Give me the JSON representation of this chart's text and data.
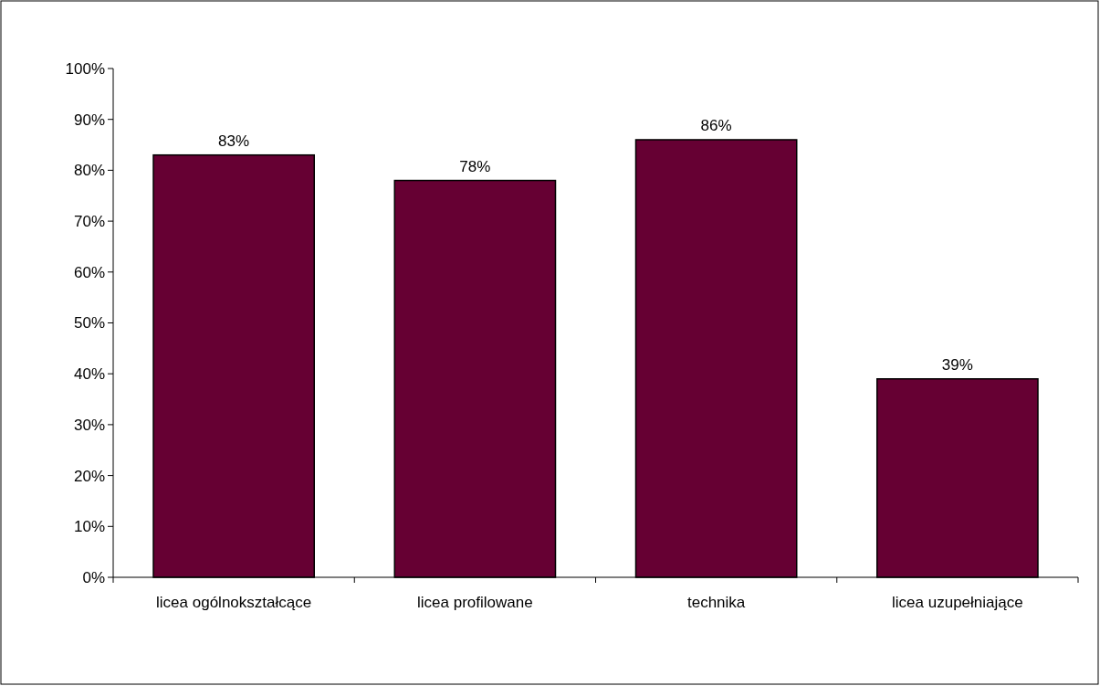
{
  "chart_data": {
    "type": "bar",
    "categories": [
      "licea ogólnokształcące",
      "licea profilowane",
      "technika",
      "licea uzupełniające"
    ],
    "values": [
      83,
      78,
      86,
      39
    ],
    "color": "#660033",
    "value_labels": [
      "83%",
      "78%",
      "86%",
      "39%"
    ],
    "ylim": [
      0,
      100
    ],
    "yticks": [
      {
        "value": 0,
        "label": "0%"
      },
      {
        "value": 10,
        "label": "10%"
      },
      {
        "value": 20,
        "label": "20%"
      },
      {
        "value": 30,
        "label": "30%"
      },
      {
        "value": 40,
        "label": "40%"
      },
      {
        "value": 50,
        "label": "50%"
      },
      {
        "value": 60,
        "label": "60%"
      },
      {
        "value": 70,
        "label": "70%"
      },
      {
        "value": 80,
        "label": "80%"
      },
      {
        "value": 90,
        "label": "90%"
      },
      {
        "value": 100,
        "label": "100%"
      }
    ],
    "grid": false
  }
}
